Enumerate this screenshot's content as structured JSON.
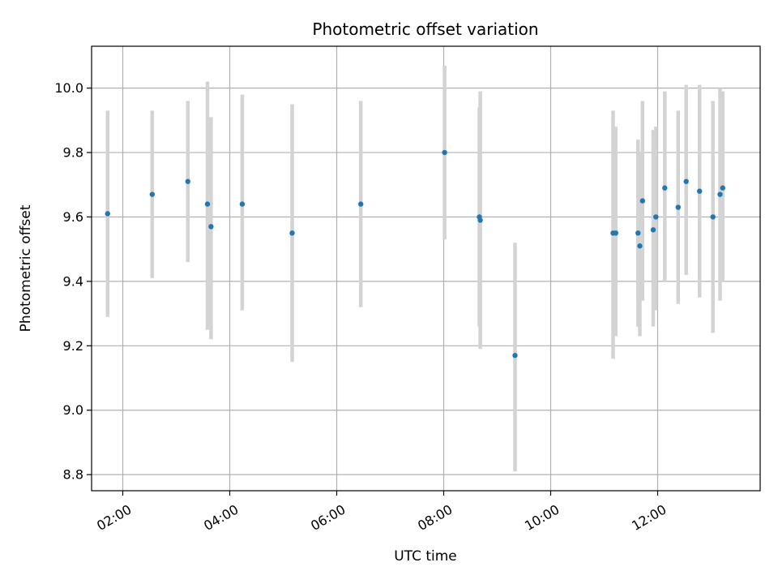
{
  "chart_data": {
    "type": "scatter",
    "title": "Photometric offset variation",
    "xlabel": "UTC time",
    "ylabel": "Photometric offset",
    "x_axis": "time (HH:MM, UTC)",
    "xlim": [
      "01:25",
      "13:55"
    ],
    "ylim": [
      8.75,
      10.13
    ],
    "x_ticks": [
      "02:00",
      "04:00",
      "06:00",
      "08:00",
      "10:00",
      "12:00"
    ],
    "y_ticks": [
      8.8,
      9.0,
      9.2,
      9.4,
      9.6,
      9.8,
      10.0
    ],
    "grid": true,
    "legend": "none",
    "colors": {
      "point": "#1f77b4",
      "errorbar": "#d3d3d3",
      "grid": "#b0b0b0"
    },
    "points": [
      {
        "x": "01:43",
        "y": 9.61,
        "ylow": 9.29,
        "yhigh": 9.93
      },
      {
        "x": "02:33",
        "y": 9.67,
        "ylow": 9.41,
        "yhigh": 9.93
      },
      {
        "x": "03:13",
        "y": 9.71,
        "ylow": 9.46,
        "yhigh": 9.96
      },
      {
        "x": "03:35",
        "y": 9.64,
        "ylow": 9.25,
        "yhigh": 10.02
      },
      {
        "x": "03:39",
        "y": 9.57,
        "ylow": 9.22,
        "yhigh": 9.91
      },
      {
        "x": "04:14",
        "y": 9.64,
        "ylow": 9.31,
        "yhigh": 9.98
      },
      {
        "x": "05:10",
        "y": 9.55,
        "ylow": 9.15,
        "yhigh": 9.95
      },
      {
        "x": "06:27",
        "y": 9.64,
        "ylow": 9.32,
        "yhigh": 9.96
      },
      {
        "x": "08:01",
        "y": 9.8,
        "ylow": 9.53,
        "yhigh": 10.07
      },
      {
        "x": "08:40",
        "y": 9.6,
        "ylow": 9.26,
        "yhigh": 9.94
      },
      {
        "x": "08:41",
        "y": 9.59,
        "ylow": 9.19,
        "yhigh": 9.99
      },
      {
        "x": "09:20",
        "y": 9.17,
        "ylow": 8.81,
        "yhigh": 9.52
      },
      {
        "x": "11:10",
        "y": 9.55,
        "ylow": 9.16,
        "yhigh": 9.93
      },
      {
        "x": "11:13",
        "y": 9.55,
        "ylow": 9.23,
        "yhigh": 9.88
      },
      {
        "x": "11:38",
        "y": 9.55,
        "ylow": 9.26,
        "yhigh": 9.84
      },
      {
        "x": "11:40",
        "y": 9.51,
        "ylow": 9.23,
        "yhigh": 9.8
      },
      {
        "x": "11:43",
        "y": 9.65,
        "ylow": 9.34,
        "yhigh": 9.96
      },
      {
        "x": "11:55",
        "y": 9.56,
        "ylow": 9.26,
        "yhigh": 9.87
      },
      {
        "x": "11:58",
        "y": 9.6,
        "ylow": 9.31,
        "yhigh": 9.88
      },
      {
        "x": "12:08",
        "y": 9.69,
        "ylow": 9.4,
        "yhigh": 9.99
      },
      {
        "x": "12:23",
        "y": 9.63,
        "ylow": 9.33,
        "yhigh": 9.93
      },
      {
        "x": "12:32",
        "y": 9.71,
        "ylow": 9.42,
        "yhigh": 10.01
      },
      {
        "x": "12:47",
        "y": 9.68,
        "ylow": 9.35,
        "yhigh": 10.01
      },
      {
        "x": "13:02",
        "y": 9.6,
        "ylow": 9.24,
        "yhigh": 9.96
      },
      {
        "x": "13:10",
        "y": 9.67,
        "ylow": 9.34,
        "yhigh": 10.0
      },
      {
        "x": "13:13",
        "y": 9.69,
        "ylow": 9.4,
        "yhigh": 9.99
      }
    ]
  }
}
